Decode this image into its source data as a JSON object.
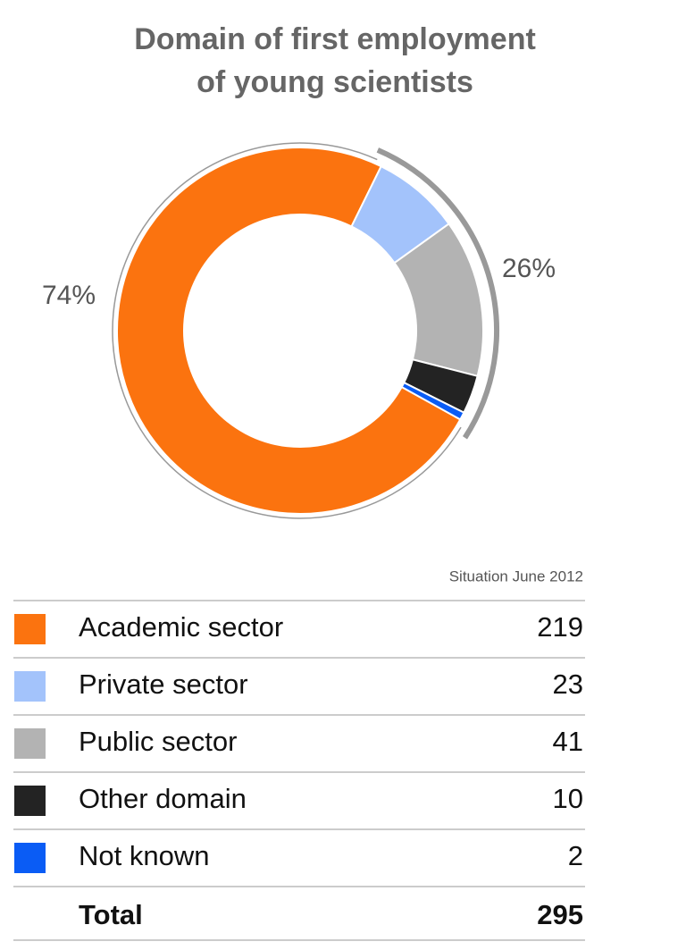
{
  "chart_data": {
    "type": "donut",
    "title": "Domain of first employment of young scientists",
    "categories": [
      "Academic sector",
      "Private sector",
      "Public sector",
      "Other domain",
      "Not known"
    ],
    "values": [
      219,
      23,
      41,
      10,
      2
    ],
    "colors": [
      "#fb730f",
      "#a3c3fb",
      "#b3b3b3",
      "#232323",
      "#0a5cf5"
    ],
    "group_labels": [
      {
        "value": 74,
        "label": "74%"
      },
      {
        "value": 26,
        "label": "26%"
      }
    ],
    "note": "Situation June 2012",
    "total": {
      "label": "Total",
      "value": 295
    }
  }
}
